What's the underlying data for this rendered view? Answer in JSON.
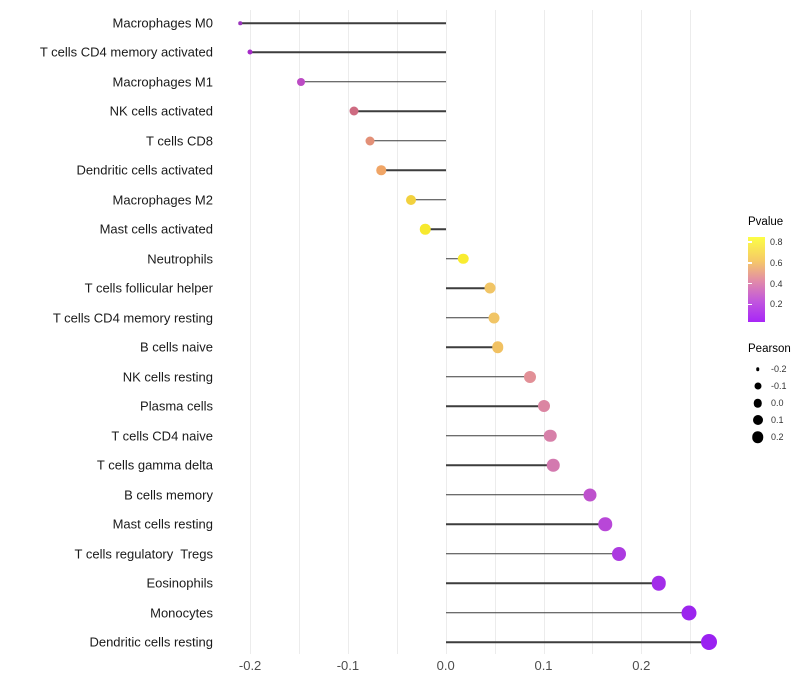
{
  "chart_data": {
    "type": "scatter",
    "subtype": "lollipop",
    "orientation": "horizontal",
    "title": "",
    "xlabel": "",
    "ylabel": "",
    "grid": true,
    "legend_position": "right",
    "categories": [
      "Macrophages M0",
      "T cells CD4 memory activated",
      "Macrophages M1",
      "NK cells activated",
      "T cells CD8",
      "Dendritic cells activated",
      "Macrophages M2",
      "Mast cells activated",
      "Neutrophils",
      "T cells follicular helper",
      "T cells CD4 memory resting",
      "B cells naive",
      "NK cells resting",
      "Plasma cells",
      "T cells CD4 naive",
      "T cells gamma delta",
      "B cells memory",
      "Mast cells resting",
      "T cells regulatory  Tregs",
      "Eosinophils",
      "Monocytes",
      "Dendritic cells resting"
    ],
    "series": [
      {
        "name": "Pearson",
        "values": [
          -0.21,
          -0.2,
          -0.148,
          -0.094,
          -0.077,
          -0.066,
          -0.035,
          -0.021,
          0.018,
          0.045,
          0.049,
          0.053,
          0.086,
          0.101,
          0.107,
          0.11,
          0.148,
          0.163,
          0.177,
          0.218,
          0.249,
          0.269
        ]
      }
    ],
    "point_colors": [
      "#9B35BD",
      "#A52BC8",
      "#BC4BC4",
      "#CE6B81",
      "#E39077",
      "#F0A566",
      "#F2D13E",
      "#F7E92E",
      "#F9EC30",
      "#F1C566",
      "#F1C566",
      "#F1C162",
      "#E29097",
      "#DB85A2",
      "#D780A9",
      "#D379AF",
      "#BE52CD",
      "#B847D8",
      "#AC3BE0",
      "#A32DE9",
      "#9C25EE",
      "#9A21F1"
    ],
    "point_diameters": [
      3.5,
      5,
      8,
      9,
      9,
      9.5,
      10,
      10.5,
      10.5,
      11,
      11,
      11.5,
      12,
      12,
      12.5,
      12.5,
      13,
      13.5,
      14,
      14.5,
      15,
      16
    ],
    "stem_from": 0,
    "xlim": [
      -0.234,
      0.294
    ],
    "x_ticks": {
      "values": [
        -0.2,
        -0.1,
        0.0,
        0.1,
        0.2
      ],
      "labels": [
        "-0.2",
        "-0.1",
        "0.0",
        "0.1",
        "0.2"
      ]
    },
    "grid_values": [
      -0.2,
      -0.15,
      -0.1,
      -0.05,
      0.0,
      0.05,
      0.1,
      0.15,
      0.2,
      0.25
    ]
  },
  "legend_pvalue": {
    "title": "Pvalue",
    "ticks": [
      "0.8",
      "0.6",
      "0.4",
      "0.2"
    ],
    "gradient_colors": [
      "#FCFE45",
      "#F6C967",
      "#E18BA9",
      "#C156DE",
      "#A826F7"
    ]
  },
  "legend_pearson": {
    "title": "Pearson",
    "items": [
      {
        "label": "-0.2",
        "diameter": 3.5
      },
      {
        "label": "-0.1",
        "diameter": 7
      },
      {
        "label": "0.0",
        "diameter": 8.5
      },
      {
        "label": "0.1",
        "diameter": 10
      },
      {
        "label": "0.2",
        "diameter": 11.5
      }
    ]
  }
}
